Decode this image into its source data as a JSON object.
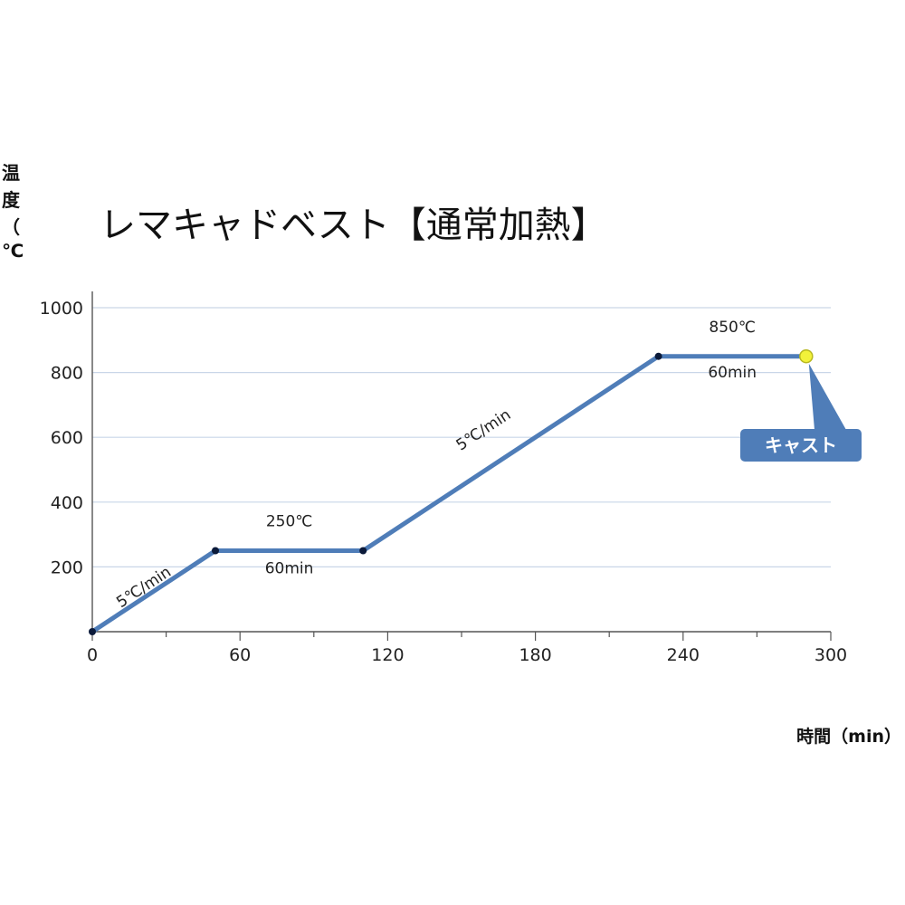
{
  "chart_data": {
    "type": "line",
    "title": "レマキャドベスト【通常加熱】",
    "ylabel": "温度（℃）",
    "xlabel": "時間（min）",
    "xlim": [
      0,
      300
    ],
    "ylim": [
      0,
      1000
    ],
    "x_ticks": [
      "0",
      "60",
      "120",
      "180",
      "240",
      "300"
    ],
    "y_ticks": [
      "200",
      "400",
      "600",
      "800",
      "1000"
    ],
    "grid": true,
    "series": [
      {
        "x": [
          0,
          50,
          110,
          230,
          290
        ],
        "y": [
          0,
          250,
          250,
          850,
          850
        ]
      }
    ],
    "annotations": [
      {
        "text": "5℃/min",
        "x": 22,
        "y": 125
      },
      {
        "text": "250℃",
        "x": 80,
        "y": 325
      },
      {
        "text": "60min",
        "x": 80,
        "y": 180
      },
      {
        "text": "5℃/min",
        "x": 160,
        "y": 610
      },
      {
        "text": "850℃",
        "x": 260,
        "y": 925
      },
      {
        "text": "60min",
        "x": 260,
        "y": 785
      }
    ],
    "callout": {
      "text": "キャスト",
      "x": 290,
      "y": 850
    },
    "colors": {
      "line": "#4f7db8",
      "grid": "#c9d6e8",
      "marker": "#0b1a3a",
      "highlight": "#f2f23a",
      "callout": "#4f7db8"
    }
  }
}
